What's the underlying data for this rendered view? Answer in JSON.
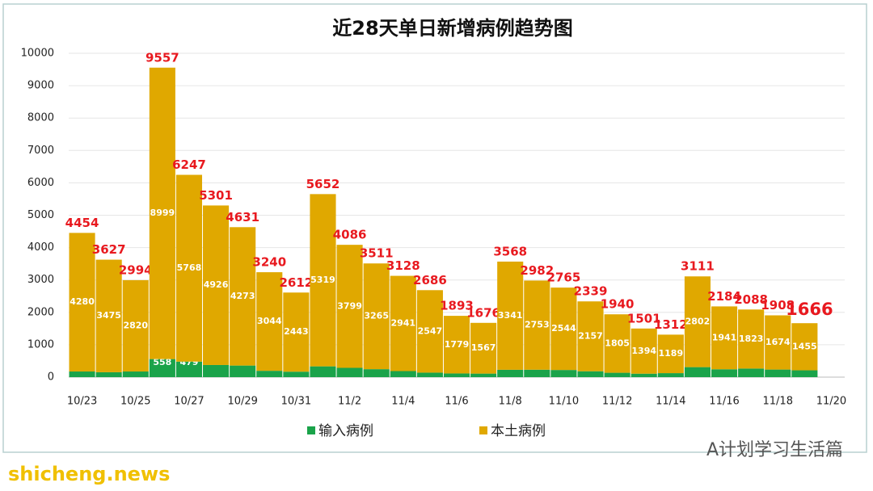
{
  "chart_data": {
    "type": "stacked_bar",
    "title": "近28天单日新增病例趋势图",
    "categories": [
      "10/23",
      null,
      "10/25",
      null,
      "10/27",
      null,
      "10/29",
      null,
      "10/31",
      null,
      "11/2",
      null,
      "11/4",
      null,
      "11/6",
      null,
      "11/8",
      null,
      "11/10",
      null,
      "11/12",
      null,
      "11/14",
      null,
      "11/16",
      null,
      "11/18",
      null,
      "11/20"
    ],
    "series": [
      {
        "name": "输入病例",
        "color": "#1aa34a",
        "values": [
          174,
          152,
          174,
          558,
          479,
          375,
          358,
          196,
          169,
          333,
          287,
          246,
          187,
          139,
          114,
          109,
          227,
          229,
          221,
          182,
          135,
          107,
          123,
          309,
          243,
          265,
          234,
          211,
          null
        ]
      },
      {
        "name": "本土病例",
        "color": "#e0a800",
        "values": [
          4280,
          3475,
          2820,
          8999,
          5768,
          4926,
          4273,
          3044,
          2443,
          5319,
          3799,
          3265,
          2941,
          2547,
          1779,
          1567,
          3341,
          2753,
          2544,
          2157,
          1805,
          1394,
          1189,
          2802,
          1941,
          1823,
          1674,
          1455,
          null
        ]
      }
    ],
    "totals": [
      4454,
      3627,
      2994,
      9557,
      6247,
      5301,
      4631,
      3240,
      2612,
      5652,
      4086,
      3511,
      3128,
      2686,
      1893,
      1676,
      3568,
      2982,
      2765,
      2339,
      1940,
      1501,
      1312,
      3111,
      2184,
      2088,
      1908,
      1666,
      null
    ],
    "total_color": "#e8191f",
    "ylim": [
      0,
      10000
    ],
    "yticks": [
      0,
      1000,
      2000,
      3000,
      4000,
      5000,
      6000,
      7000,
      8000,
      9000,
      10000
    ],
    "grid": true
  },
  "watermark": "A计划学习生活篇",
  "source": "shicheng.news"
}
